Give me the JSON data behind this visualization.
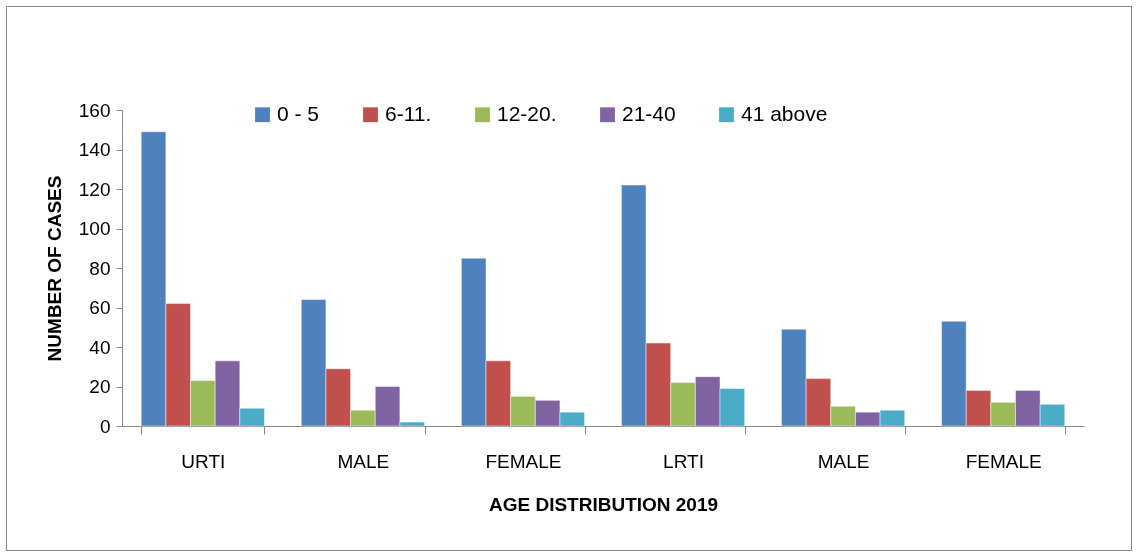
{
  "chart_data": {
    "type": "bar",
    "xlabel": "AGE DISTRIBUTION 2019",
    "ylabel": "NUMBER OF CASES",
    "categories": [
      "URTI",
      "MALE",
      "FEMALE",
      "LRTI",
      "MALE",
      "FEMALE"
    ],
    "series": [
      {
        "name": "0 - 5",
        "color": "#4f81bd",
        "values": [
          149,
          64,
          85,
          122,
          49,
          53
        ]
      },
      {
        "name": "6-11.",
        "color": "#c0504d",
        "values": [
          62,
          29,
          33,
          42,
          24,
          18
        ]
      },
      {
        "name": "12-20.",
        "color": "#9bbb59",
        "values": [
          23,
          8,
          15,
          22,
          10,
          12
        ]
      },
      {
        "name": "21-40",
        "color": "#8064a2",
        "values": [
          33,
          20,
          13,
          25,
          7,
          18
        ]
      },
      {
        "name": "41 above",
        "color": "#4bacc6",
        "values": [
          9,
          2,
          7,
          19,
          8,
          11
        ]
      }
    ],
    "ylim": [
      0,
      160
    ],
    "yticks": [
      0,
      20,
      40,
      60,
      80,
      100,
      120,
      140,
      160
    ],
    "grid": false,
    "legend": "top"
  }
}
